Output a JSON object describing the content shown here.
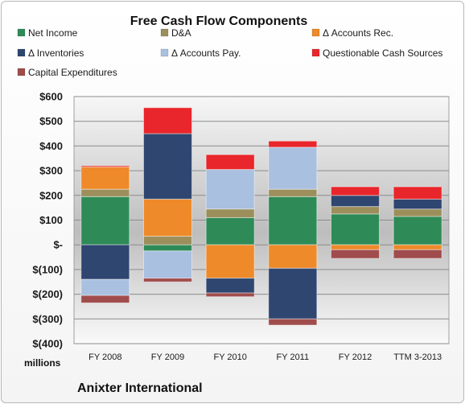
{
  "title": "Free Cash Flow Components",
  "units_label": "millions",
  "company": "Anixter International",
  "chart_data": {
    "type": "bar",
    "stacked": true,
    "categories": [
      "FY 2008",
      "FY 2009",
      "FY 2010",
      "FY 2011",
      "FY 2012",
      "TTM 3-2013"
    ],
    "ylim": [
      -400,
      600
    ],
    "yticks": [
      600,
      500,
      400,
      300,
      200,
      100,
      0,
      -100,
      -200,
      -300,
      -400
    ],
    "ytick_labels": [
      "$600",
      "$500",
      "$400",
      "$300",
      "$200",
      "$100",
      "$-",
      "$(100)",
      "$(200)",
      "$(300)",
      "$(400)"
    ],
    "grid": true,
    "legend_position": "top",
    "series": [
      {
        "name": "Net Income",
        "color": "#2e8b57",
        "values": [
          195,
          -25,
          110,
          195,
          125,
          115
        ]
      },
      {
        "name": "D&A",
        "color": "#9c8f5c",
        "values": [
          30,
          35,
          35,
          30,
          30,
          30
        ]
      },
      {
        "name": "Δ Accounts Rec.",
        "color": "#ee8a2a",
        "values": [
          90,
          150,
          -135,
          -95,
          -20,
          -20
        ]
      },
      {
        "name": "Δ Inventories",
        "color": "#2e4670",
        "values": [
          -140,
          265,
          -60,
          -205,
          45,
          40
        ]
      },
      {
        "name": "Δ Accounts Pay.",
        "color": "#a9c0e0",
        "values": [
          -65,
          -110,
          160,
          170,
          0,
          0
        ]
      },
      {
        "name": "Questionable Cash Sources",
        "color": "#e8262b",
        "values": [
          5,
          105,
          60,
          25,
          35,
          50
        ]
      },
      {
        "name": "Capital Expenditures",
        "color": "#a04c4c",
        "values": [
          -30,
          -15,
          -15,
          -25,
          -35,
          -35
        ]
      }
    ]
  }
}
